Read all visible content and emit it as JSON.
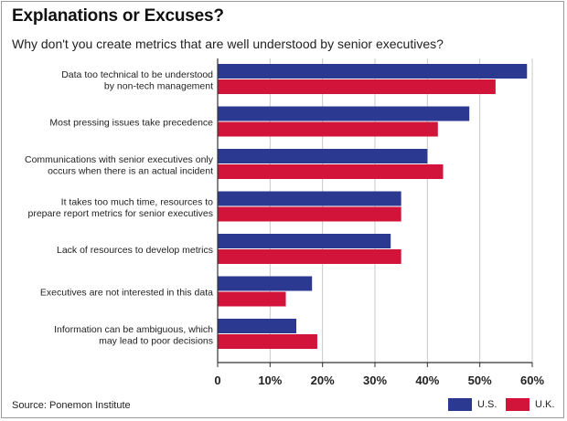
{
  "title": "Explanations or Excuses?",
  "subtitle": "Why don't you create metrics that are well understood by senior executives?",
  "source": "Source: Ponemon Institute",
  "colors": {
    "us": "#2b3990",
    "uk": "#d2143a",
    "grid": "#c8c8c8",
    "axis": "#333333"
  },
  "chart_data": {
    "type": "bar",
    "orientation": "horizontal",
    "categories": [
      [
        "Data too technical to be understood",
        "by non-tech management"
      ],
      [
        "Most pressing issues take precedence"
      ],
      [
        "Communications with senior executives only",
        "occurs when there is an actual incident"
      ],
      [
        "It takes too much time, resources to",
        "prepare report metrics for senior executives"
      ],
      [
        "Lack of resources to develop metrics"
      ],
      [
        "Executives are not interested in this data"
      ],
      [
        "Information can be ambiguous, which",
        "may lead to poor decisions"
      ]
    ],
    "series": [
      {
        "name": "U.S.",
        "values": [
          59,
          48,
          40,
          35,
          33,
          18,
          15
        ]
      },
      {
        "name": "U.K.",
        "values": [
          53,
          42,
          43,
          35,
          35,
          13,
          19
        ]
      }
    ],
    "xlim": [
      0,
      60
    ],
    "xticks": [
      "0",
      "10%",
      "20%",
      "30%",
      "40%",
      "50%",
      "60%"
    ],
    "grid": true,
    "legend_position": "bottom-right"
  }
}
